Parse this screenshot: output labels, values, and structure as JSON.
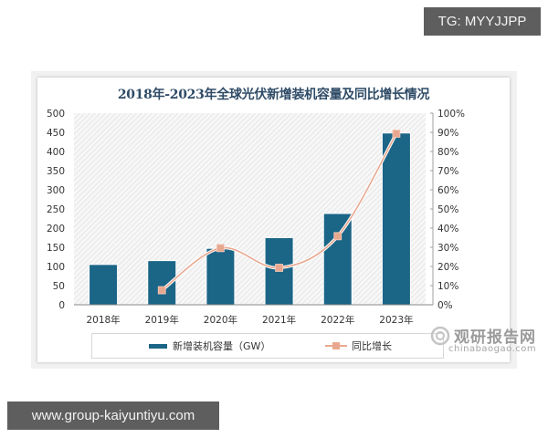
{
  "overlay": {
    "tg_label": "TG: MYYJJPP",
    "url_label": "www.group-kaiyuntiyu.com"
  },
  "watermark": {
    "cn": "观研报告网",
    "en": "chinabaogao.com"
  },
  "colors": {
    "bar": "#1b6587",
    "line": "#e8a88f",
    "title": "#2e4b66",
    "badge_bg": "#5e5e5e"
  },
  "chart_data": {
    "type": "bar+line",
    "title": "2018年-2023年全球光伏新增装机容量及同比增长情况",
    "categories": [
      "2018年",
      "2019年",
      "2020年",
      "2021年",
      "2022年",
      "2023年"
    ],
    "series": [
      {
        "name": "新增装机容量（GW）",
        "type": "bar",
        "axis": "left",
        "values": [
          104,
          114,
          146,
          174,
          237,
          447
        ]
      },
      {
        "name": "同比增长",
        "type": "line",
        "axis": "right",
        "unit": "%",
        "values": [
          null,
          7.6,
          29.6,
          19.3,
          35.8,
          89.3
        ]
      }
    ],
    "left_axis": {
      "ylim": [
        0,
        500
      ],
      "ticks": [
        "0",
        "50",
        "100",
        "150",
        "200",
        "250",
        "300",
        "350",
        "400",
        "450",
        "500"
      ]
    },
    "right_axis": {
      "ylim": [
        0,
        100
      ],
      "ticks": [
        "0%",
        "10%",
        "20%",
        "30%",
        "40%",
        "50%",
        "60%",
        "70%",
        "80%",
        "90%",
        "100%"
      ]
    },
    "xlabel": "",
    "ylabel": "",
    "grid": false,
    "legend": {
      "position": "bottom",
      "entries": [
        "新增装机容量（GW）",
        "同比增长"
      ]
    }
  }
}
